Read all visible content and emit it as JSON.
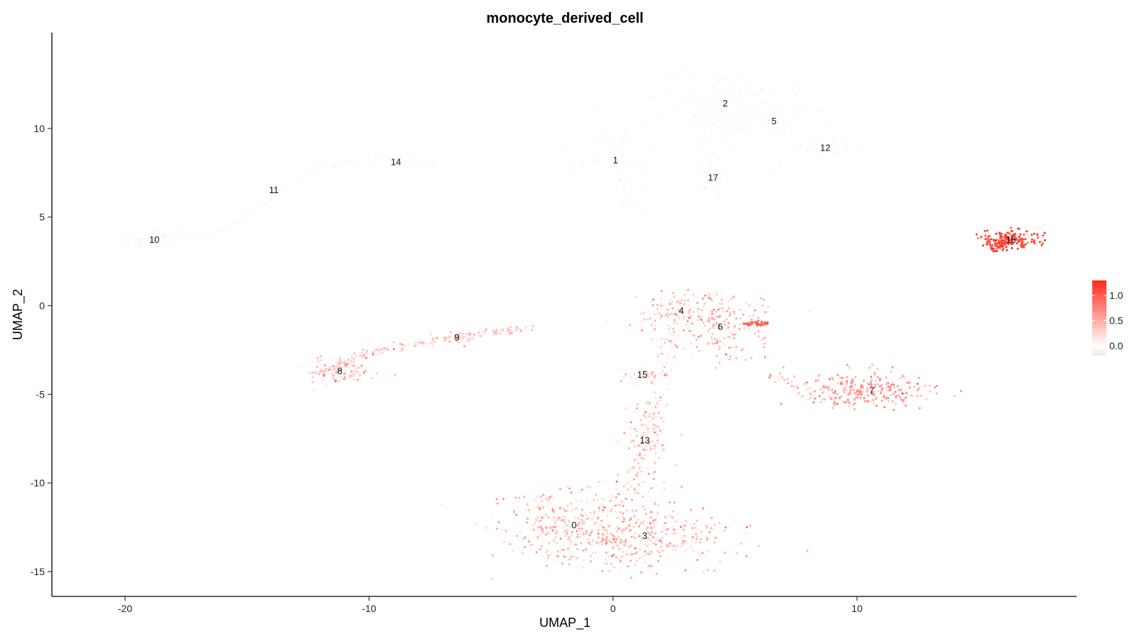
{
  "chart_data": {
    "type": "scatter",
    "title": "monocyte_derived_cell",
    "xlabel": "UMAP_1",
    "ylabel": "UMAP_2",
    "xlim": [
      -23,
      19
    ],
    "ylim": [
      -16.4,
      15.4
    ],
    "x_ticks": [
      -20,
      -10,
      0,
      10
    ],
    "y_ticks": [
      -15,
      -10,
      -5,
      0,
      5,
      10
    ],
    "grid": false,
    "color_scale": {
      "low": "#ebebeb",
      "mid": "#ffffff",
      "high": "#ff2a1a",
      "range": [
        -0.2,
        1.3
      ],
      "ticks": [
        0.0,
        0.5,
        1.0
      ],
      "tick_labels": [
        "0.0",
        "0.5",
        "1.0"
      ]
    },
    "legend_position": "right",
    "clusters": [
      {
        "label": "0",
        "x": -1.6,
        "y": -12.4,
        "sx": 1.7,
        "sy": 1.0,
        "n": 340,
        "expr": 0.35
      },
      {
        "label": "1",
        "x": 0.1,
        "y": 8.2,
        "sx": 0.9,
        "sy": 1.3,
        "n": 140,
        "expr": 0.0
      },
      {
        "label": "2",
        "x": 4.6,
        "y": 11.4,
        "sx": 1.3,
        "sy": 0.9,
        "n": 200,
        "expr": 0.0
      },
      {
        "label": "3",
        "x": 1.3,
        "y": -13.0,
        "sx": 2.0,
        "sy": 0.9,
        "n": 300,
        "expr": 0.35
      },
      {
        "label": "4",
        "x": 2.8,
        "y": -0.3,
        "sx": 1.2,
        "sy": 0.6,
        "n": 120,
        "expr": 0.3
      },
      {
        "label": "5",
        "x": 6.6,
        "y": 10.4,
        "sx": 1.5,
        "sy": 1.0,
        "n": 200,
        "expr": 0.0
      },
      {
        "label": "6",
        "x": 4.4,
        "y": -1.2,
        "sx": 1.1,
        "sy": 0.9,
        "n": 170,
        "expr": 0.4
      },
      {
        "label": "7",
        "x": 10.6,
        "y": -4.8,
        "sx": 1.2,
        "sy": 0.5,
        "n": 260,
        "expr": 0.55
      },
      {
        "label": "8",
        "x": -11.2,
        "y": -3.7,
        "sx": 0.6,
        "sy": 0.4,
        "n": 130,
        "expr": 0.3
      },
      {
        "label": "9",
        "x": -6.4,
        "y": -1.8,
        "sx": 0.4,
        "sy": 0.2,
        "n": 25,
        "expr": 0.3
      },
      {
        "label": "10",
        "x": -18.8,
        "y": 3.7,
        "sx": 0.8,
        "sy": 0.25,
        "n": 90,
        "expr": 0.0
      },
      {
        "label": "11",
        "x": -13.9,
        "y": 6.5,
        "sx": 0.4,
        "sy": 0.2,
        "n": 25,
        "expr": 0.0
      },
      {
        "label": "12",
        "x": 8.7,
        "y": 8.9,
        "sx": 0.6,
        "sy": 0.3,
        "n": 60,
        "expr": 0.0
      },
      {
        "label": "13",
        "x": 1.3,
        "y": -7.6,
        "sx": 0.5,
        "sy": 1.3,
        "n": 110,
        "expr": 0.3
      },
      {
        "label": "14",
        "x": -8.9,
        "y": 8.1,
        "sx": 0.4,
        "sy": 0.2,
        "n": 25,
        "expr": 0.0
      },
      {
        "label": "15",
        "x": 1.2,
        "y": -3.9,
        "sx": 0.5,
        "sy": 0.25,
        "n": 30,
        "expr": 0.3
      },
      {
        "label": "16",
        "x": 16.3,
        "y": 3.7,
        "sx": 0.6,
        "sy": 0.25,
        "n": 150,
        "expr": 1.2
      },
      {
        "label": "17",
        "x": 4.1,
        "y": 7.2,
        "sx": 0.3,
        "sy": 0.6,
        "n": 40,
        "expr": 0.0
      }
    ],
    "paths": [
      {
        "name": "trajectory-10-11-14",
        "expr": 0.0,
        "n": 240,
        "spread": 0.12,
        "points": [
          [
            -20,
            3.3
          ],
          [
            -18.5,
            3.8
          ],
          [
            -16.5,
            4.0
          ],
          [
            -15,
            5.0
          ],
          [
            -13.8,
            6.5
          ],
          [
            -12,
            7.8
          ],
          [
            -10,
            8.1
          ],
          [
            -8,
            8.1
          ],
          [
            -7.2,
            7.9
          ]
        ]
      },
      {
        "name": "trajectory-8-9",
        "expr": 0.3,
        "n": 170,
        "spread": 0.1,
        "points": [
          [
            -12,
            -3.9
          ],
          [
            -10.5,
            -2.8
          ],
          [
            -8,
            -2.1
          ],
          [
            -6.4,
            -1.8
          ],
          [
            -4.5,
            -1.4
          ],
          [
            -3,
            -1.3
          ]
        ]
      },
      {
        "name": "trajectory-4-13",
        "expr": 0.2,
        "n": 150,
        "spread": 0.2,
        "points": [
          [
            2.5,
            -1.0
          ],
          [
            2.1,
            -3.5
          ],
          [
            1.7,
            -6.0
          ],
          [
            1.3,
            -8.0
          ],
          [
            0.7,
            -10.0
          ],
          [
            0.2,
            -11.0
          ]
        ]
      },
      {
        "name": "trajectory-1-tail",
        "expr": 0.0,
        "n": 35,
        "spread": 0.12,
        "points": [
          [
            0.3,
            6.6
          ],
          [
            0.9,
            5.5
          ],
          [
            1.3,
            4.8
          ]
        ]
      },
      {
        "name": "trajectory-6-7",
        "expr": 0.25,
        "n": 40,
        "spread": 0.15,
        "points": [
          [
            6.2,
            -3.8
          ],
          [
            7.5,
            -4.5
          ],
          [
            8.6,
            -5.2
          ],
          [
            9.4,
            -5.4
          ]
        ]
      },
      {
        "name": "trajectory-6-branch",
        "expr": 0.9,
        "n": 40,
        "spread": 0.06,
        "points": [
          [
            5.4,
            -1.0
          ],
          [
            6.3,
            -1.05
          ]
        ]
      },
      {
        "name": "trajectory-16-tail",
        "expr": 1.25,
        "n": 40,
        "spread": 0.1,
        "points": [
          [
            15.5,
            3.2
          ],
          [
            16.0,
            3.6
          ],
          [
            16.5,
            3.9
          ]
        ]
      },
      {
        "name": "trajectory-2-17",
        "expr": 0.0,
        "n": 60,
        "spread": 0.25,
        "points": [
          [
            3.8,
            10.5
          ],
          [
            3.9,
            9.0
          ],
          [
            4.1,
            7.5
          ],
          [
            4.2,
            6.3
          ]
        ]
      }
    ]
  }
}
